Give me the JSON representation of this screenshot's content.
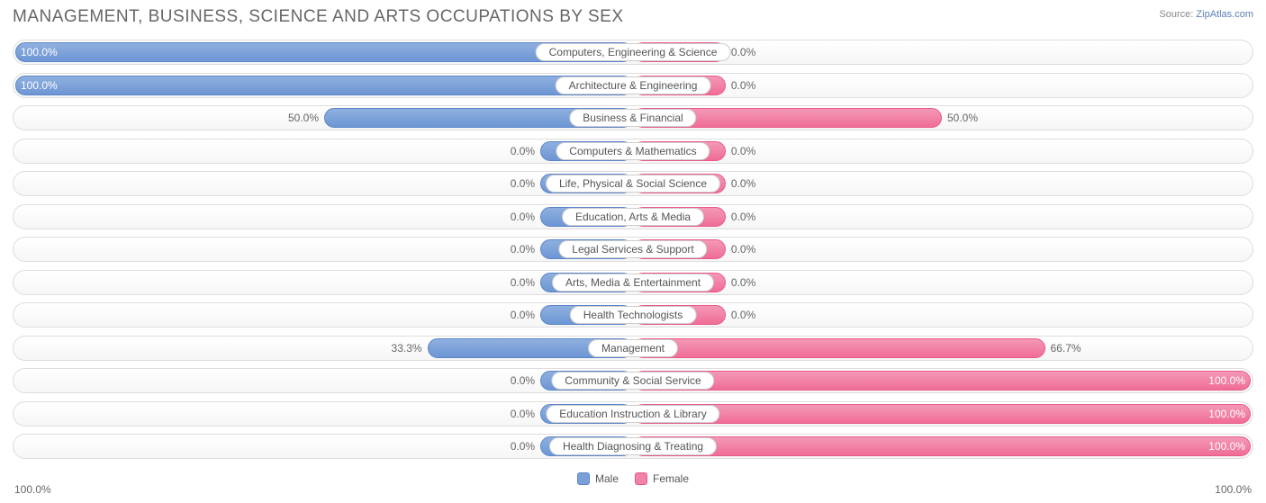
{
  "title": "MANAGEMENT, BUSINESS, SCIENCE AND ARTS OCCUPATIONS BY SEX",
  "source_label": "Source:",
  "source_value": "ZipAtlas.com",
  "chart": {
    "type": "diverging-bar",
    "male_color": "#7ba0d8",
    "female_color": "#f183a6",
    "background_color": "#ffffff",
    "row_border_color": "#dddddd",
    "text_color": "#666666",
    "label_bg": "#ffffff",
    "min_bar_pct": 15,
    "axis_left": "100.0%",
    "axis_right": "100.0%",
    "rows": [
      {
        "label": "Computers, Engineering & Science",
        "male": 100.0,
        "female": 0.0
      },
      {
        "label": "Architecture & Engineering",
        "male": 100.0,
        "female": 0.0
      },
      {
        "label": "Business & Financial",
        "male": 50.0,
        "female": 50.0
      },
      {
        "label": "Computers & Mathematics",
        "male": 0.0,
        "female": 0.0
      },
      {
        "label": "Life, Physical & Social Science",
        "male": 0.0,
        "female": 0.0
      },
      {
        "label": "Education, Arts & Media",
        "male": 0.0,
        "female": 0.0
      },
      {
        "label": "Legal Services & Support",
        "male": 0.0,
        "female": 0.0
      },
      {
        "label": "Arts, Media & Entertainment",
        "male": 0.0,
        "female": 0.0
      },
      {
        "label": "Health Technologists",
        "male": 0.0,
        "female": 0.0
      },
      {
        "label": "Management",
        "male": 33.3,
        "female": 66.7
      },
      {
        "label": "Community & Social Service",
        "male": 0.0,
        "female": 100.0
      },
      {
        "label": "Education Instruction & Library",
        "male": 0.0,
        "female": 100.0
      },
      {
        "label": "Health Diagnosing & Treating",
        "male": 0.0,
        "female": 100.0
      }
    ]
  },
  "legend": {
    "male": "Male",
    "female": "Female"
  }
}
